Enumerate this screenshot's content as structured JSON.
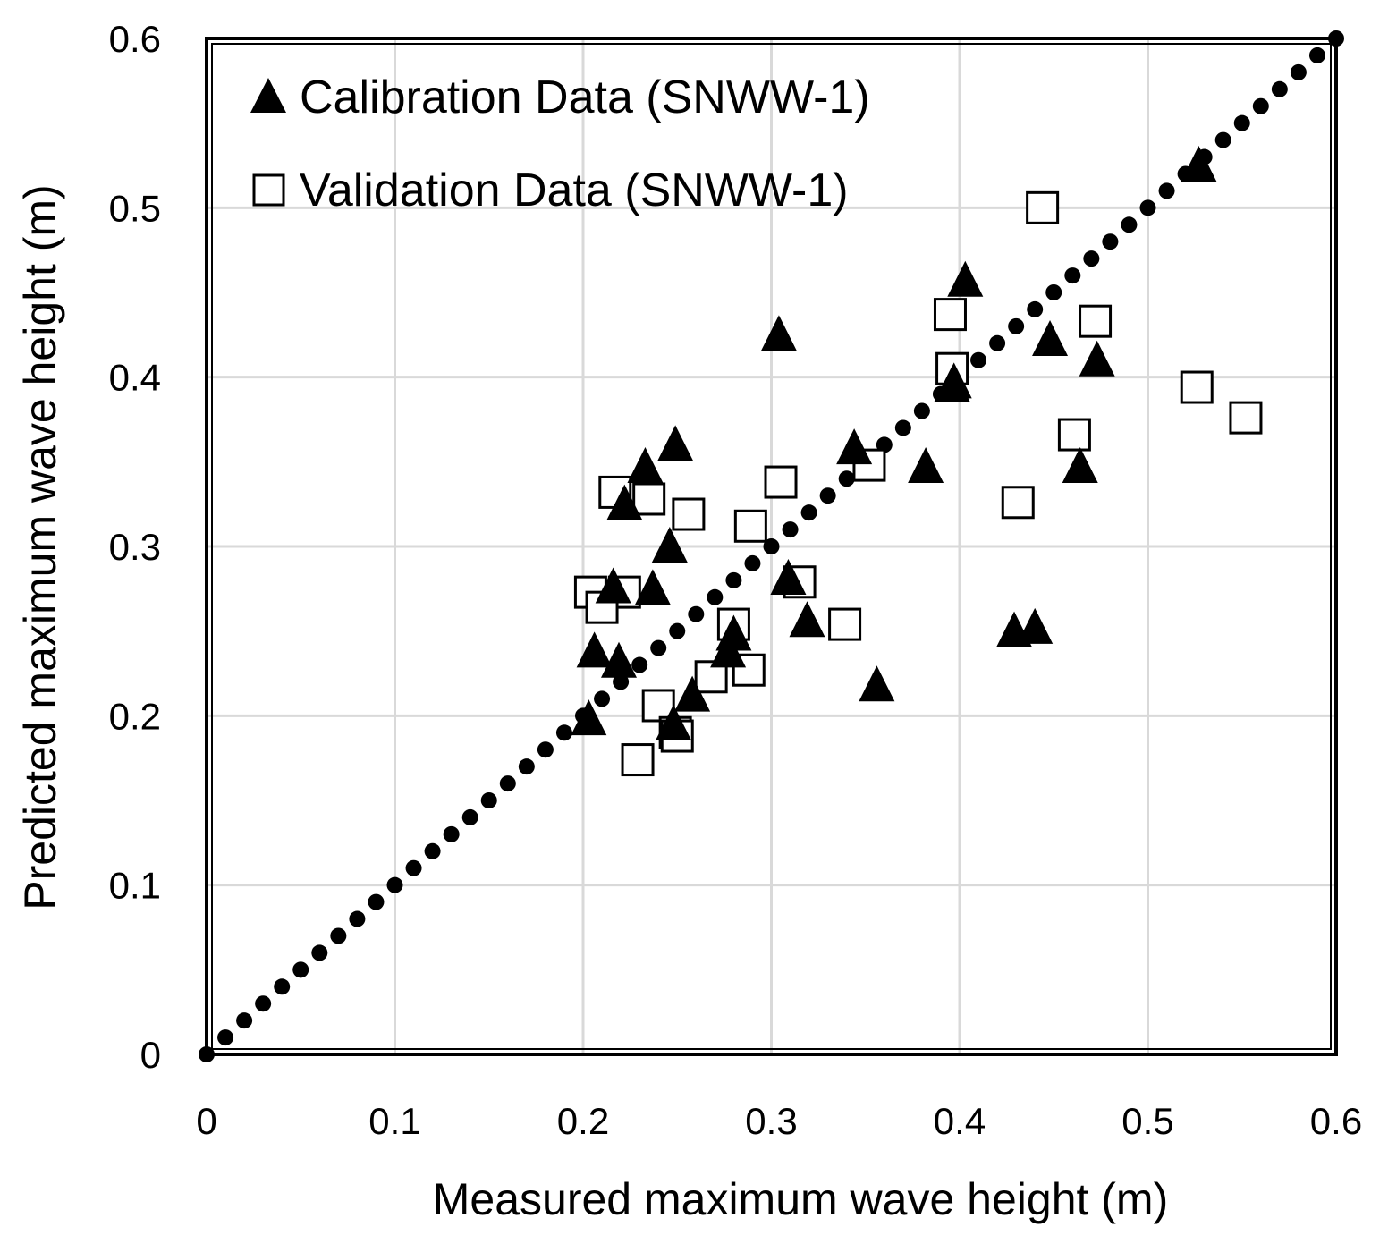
{
  "chart_data": {
    "type": "scatter",
    "xlabel": "Measured maximum wave height (m)",
    "ylabel": "Predicted maximum wave height (m)",
    "xlim": [
      0,
      0.6
    ],
    "ylim": [
      0,
      0.6
    ],
    "xticks": [
      "0",
      "0.1",
      "0.2",
      "0.3",
      "0.4",
      "0.5",
      "0.6"
    ],
    "yticks": [
      "0",
      "0.1",
      "0.2",
      "0.3",
      "0.4",
      "0.5",
      "0.6"
    ],
    "grid": true,
    "legend_position": "top-left",
    "reference_line": {
      "style": "dotted",
      "from": [
        0,
        0
      ],
      "to": [
        0.6,
        0.6
      ],
      "color": "#000000"
    },
    "series": [
      {
        "name": "Calibration Data (SNWW-1)",
        "marker": "filled-triangle",
        "color": "#000000",
        "points": [
          [
            0.527,
            0.525
          ],
          [
            0.403,
            0.457
          ],
          [
            0.304,
            0.425
          ],
          [
            0.448,
            0.422
          ],
          [
            0.473,
            0.41
          ],
          [
            0.397,
            0.397
          ],
          [
            0.396,
            0.395
          ],
          [
            0.249,
            0.36
          ],
          [
            0.344,
            0.358
          ],
          [
            0.233,
            0.347
          ],
          [
            0.382,
            0.347
          ],
          [
            0.464,
            0.347
          ],
          [
            0.222,
            0.325
          ],
          [
            0.246,
            0.3
          ],
          [
            0.309,
            0.281
          ],
          [
            0.216,
            0.276
          ],
          [
            0.237,
            0.275
          ],
          [
            0.319,
            0.256
          ],
          [
            0.28,
            0.248
          ],
          [
            0.277,
            0.238
          ],
          [
            0.206,
            0.238
          ],
          [
            0.219,
            0.232
          ],
          [
            0.429,
            0.25
          ],
          [
            0.44,
            0.252
          ],
          [
            0.356,
            0.218
          ],
          [
            0.258,
            0.212
          ],
          [
            0.248,
            0.195
          ],
          [
            0.203,
            0.198
          ]
        ]
      },
      {
        "name": "Validation Data (SNWW-1)",
        "marker": "open-square",
        "color": "#000000",
        "points": [
          [
            0.444,
            0.5
          ],
          [
            0.395,
            0.437
          ],
          [
            0.472,
            0.433
          ],
          [
            0.396,
            0.405
          ],
          [
            0.526,
            0.394
          ],
          [
            0.552,
            0.376
          ],
          [
            0.461,
            0.366
          ],
          [
            0.352,
            0.348
          ],
          [
            0.305,
            0.338
          ],
          [
            0.217,
            0.332
          ],
          [
            0.235,
            0.328
          ],
          [
            0.431,
            0.326
          ],
          [
            0.256,
            0.319
          ],
          [
            0.289,
            0.312
          ],
          [
            0.315,
            0.279
          ],
          [
            0.204,
            0.273
          ],
          [
            0.222,
            0.273
          ],
          [
            0.21,
            0.264
          ],
          [
            0.339,
            0.254
          ],
          [
            0.28,
            0.254
          ],
          [
            0.288,
            0.227
          ],
          [
            0.268,
            0.223
          ],
          [
            0.24,
            0.206
          ],
          [
            0.249,
            0.19
          ],
          [
            0.25,
            0.188
          ],
          [
            0.229,
            0.174
          ]
        ]
      }
    ]
  }
}
